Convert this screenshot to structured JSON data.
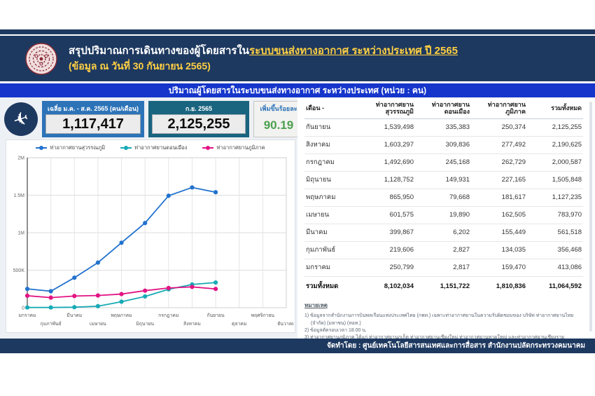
{
  "header": {
    "title_prefix": "สรุปปริมาณการเดินทางของผู้โดยสารใน",
    "title_link": "ระบบขนส่งทางอากาศ ระหว่างประเทศ ปี 2565",
    "subtitle": "(ข้อมูล ณ วันที่ 30 กันยายน 2565)",
    "logo_name": "ministry-of-transport-seal"
  },
  "section_bar": {
    "title": "ปริมาณผู้โดยสารในระบบขนส่งทางอากาศ ระหว่างประเทศ (หน่วย : คน)"
  },
  "stats": {
    "avg": {
      "label": "เฉลี่ย ม.ค. - ส.ค. 2565 (คน/เดือน)",
      "value": "1,117,417"
    },
    "current": {
      "label": "ก.ย. 2565",
      "value": "2,125,255"
    },
    "growth": {
      "label": "เพิ่มขึ้นร้อยละ",
      "value": "90.19"
    }
  },
  "chart_data": {
    "type": "line",
    "categories": [
      "มกราคม",
      "กุมภาพันธ์",
      "มีนาคม",
      "เมษายน",
      "พฤษภาคม",
      "มิถุนายน",
      "กรกฎาคม",
      "สิงหาคม",
      "กันยายน",
      "ตุลาคม",
      "พฤศจิกายน",
      "ธันวาคม"
    ],
    "series": [
      {
        "name": "ท่าอากาศยานสุวรรณภูมิ",
        "color": "#2272ce",
        "values": [
          250799,
          219606,
          399867,
          601575,
          865950,
          1128752,
          1492690,
          1603297,
          1539498
        ]
      },
      {
        "name": "ท่าอากาศยานดอนเมือง",
        "color": "#16aab6",
        "values": [
          2817,
          2827,
          6202,
          19890,
          79668,
          149931,
          245168,
          309836,
          335383
        ]
      },
      {
        "name": "ท่าอากาศยานภูมิภาค",
        "color": "#e31383",
        "values": [
          159470,
          134035,
          155449,
          162505,
          181617,
          227165,
          262729,
          277492,
          250374
        ]
      }
    ],
    "title": "",
    "xlabel": "",
    "ylabel": "",
    "ylim": [
      0,
      2000000
    ],
    "yticks": [
      "0",
      "500K",
      "1M",
      "1.5M",
      "2M"
    ],
    "grid": true,
    "legend_position": "top"
  },
  "table": {
    "columns": [
      "เดือน -",
      "ท่าอากาศยาน สุวรรณภูมิ",
      "ท่าอากาศยาน ดอนเมือง",
      "ท่าอากาศยาน ภูมิภาค",
      "รวมทั้งหมด"
    ],
    "rows": [
      [
        "กันยายน",
        "1,539,498",
        "335,383",
        "250,374",
        "2,125,255"
      ],
      [
        "สิงหาคม",
        "1,603,297",
        "309,836",
        "277,492",
        "2,190,625"
      ],
      [
        "กรกฎาคม",
        "1,492,690",
        "245,168",
        "262,729",
        "2,000,587"
      ],
      [
        "มิถุนายน",
        "1,128,752",
        "149,931",
        "227,165",
        "1,505,848"
      ],
      [
        "พฤษภาคม",
        "865,950",
        "79,668",
        "181,617",
        "1,127,235"
      ],
      [
        "เมษายน",
        "601,575",
        "19,890",
        "162,505",
        "783,970"
      ],
      [
        "มีนาคม",
        "399,867",
        "6,202",
        "155,449",
        "561,518"
      ],
      [
        "กุมภาพันธ์",
        "219,606",
        "2,827",
        "134,035",
        "356,468"
      ],
      [
        "มกราคม",
        "250,799",
        "2,817",
        "159,470",
        "413,086"
      ]
    ],
    "total_row": [
      "รวมทั้งหมด",
      "8,102,034",
      "1,151,722",
      "1,810,836",
      "11,064,592"
    ]
  },
  "notes": {
    "heading": "หมายเหตุ",
    "items": [
      "1) ข้อมูลจากสำนักงานการบินพลเรือนแห่งประเทศไทย (กพท.) เฉพาะท่าอากาศยานในความรับผิดชอบของ บริษัท ท่าอากาศยานไทย (จำกัด) (มหาชน) (ทอท.)",
      "2) ข้อมูลตัดรอบเวลา 18.00 น.",
      "3) ท่าอากาศยานภูมิภาค ได้แก่ ท่าอากาศยานภูเก็ต ท่าอากาศยานเชียงใหม่ ท่าอากาศยานหาดใหญ่ และท่าอากาศยานเชียงราย"
    ]
  },
  "footer": {
    "text": "จัดทำโดย : ศูนย์เทคโนโลยีสารสนเทศและการสื่อสาร สำนักงานปลัดกระทรวงคมนาคม"
  },
  "colors": {
    "navy": "#1e3960",
    "section_blue": "#1535cb",
    "gold": "#ffd042",
    "stat1_blue": "#2d73b8",
    "stat2_teal": "#19647f",
    "growth_green": "#4ba04e"
  }
}
